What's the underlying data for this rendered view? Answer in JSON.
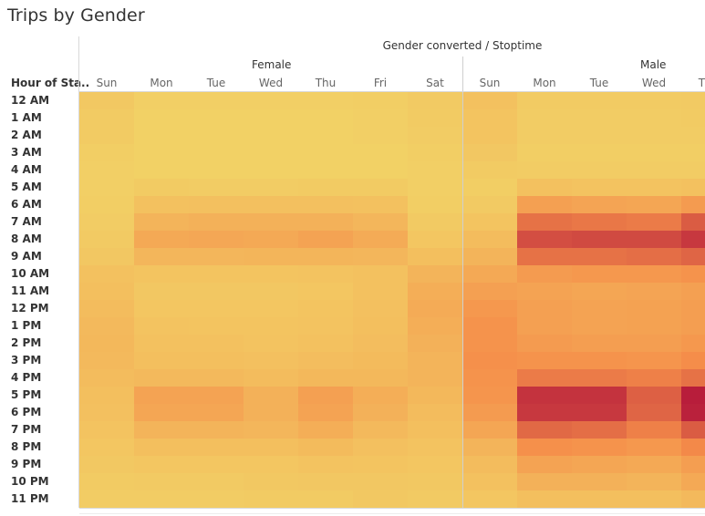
{
  "title": "Trips by Gender",
  "chart_data": {
    "type": "heatmap",
    "title": "Trips by Gender",
    "column_header": "Gender converted / Stoptime",
    "row_header": "Hour of Sta..",
    "genders": [
      "Female",
      "Male"
    ],
    "days": [
      "Sun",
      "Mon",
      "Tue",
      "Wed",
      "Thu",
      "Fri",
      "Sat"
    ],
    "hours": [
      "12 AM",
      "1 AM",
      "2 AM",
      "3 AM",
      "4 AM",
      "5 AM",
      "6 AM",
      "7 AM",
      "8 AM",
      "9 AM",
      "10 AM",
      "11 AM",
      "12 PM",
      "1 PM",
      "2 PM",
      "3 PM",
      "4 PM",
      "5 PM",
      "6 PM",
      "7 PM",
      "8 PM",
      "9 PM",
      "10 PM",
      "11 PM"
    ],
    "visible_columns": [
      {
        "gender": "Female",
        "day": "Sun"
      },
      {
        "gender": "Female",
        "day": "Mon"
      },
      {
        "gender": "Female",
        "day": "Tue"
      },
      {
        "gender": "Female",
        "day": "Wed"
      },
      {
        "gender": "Female",
        "day": "Thu"
      },
      {
        "gender": "Female",
        "day": "Fri"
      },
      {
        "gender": "Female",
        "day": "Sat"
      },
      {
        "gender": "Male",
        "day": "Sun"
      },
      {
        "gender": "Male",
        "day": "Mon"
      },
      {
        "gender": "Male",
        "day": "Tue"
      },
      {
        "gender": "Male",
        "day": "Wed"
      },
      {
        "gender": "Male",
        "day": "Thu"
      }
    ],
    "intensity_scale": "relative 0-1",
    "color_low": "#f2d266",
    "color_mid": "#f58d4a",
    "color_high": "#b81d3b",
    "values": [
      [
        0.07,
        0.02,
        0.02,
        0.02,
        0.02,
        0.03,
        0.06,
        0.12,
        0.05,
        0.05,
        0.05,
        0.06
      ],
      [
        0.05,
        0.01,
        0.01,
        0.01,
        0.01,
        0.02,
        0.05,
        0.1,
        0.04,
        0.04,
        0.04,
        0.05
      ],
      [
        0.05,
        0.01,
        0.01,
        0.01,
        0.01,
        0.02,
        0.04,
        0.1,
        0.04,
        0.04,
        0.04,
        0.04
      ],
      [
        0.03,
        0.01,
        0.01,
        0.01,
        0.01,
        0.01,
        0.03,
        0.08,
        0.03,
        0.03,
        0.03,
        0.03
      ],
      [
        0.02,
        0.01,
        0.01,
        0.01,
        0.01,
        0.01,
        0.02,
        0.05,
        0.04,
        0.04,
        0.04,
        0.04
      ],
      [
        0.02,
        0.05,
        0.04,
        0.04,
        0.05,
        0.05,
        0.02,
        0.03,
        0.12,
        0.11,
        0.11,
        0.12
      ],
      [
        0.03,
        0.12,
        0.13,
        0.13,
        0.13,
        0.12,
        0.03,
        0.06,
        0.36,
        0.33,
        0.32,
        0.4
      ],
      [
        0.04,
        0.22,
        0.24,
        0.24,
        0.24,
        0.2,
        0.06,
        0.1,
        0.62,
        0.6,
        0.58,
        0.72
      ],
      [
        0.06,
        0.3,
        0.31,
        0.3,
        0.34,
        0.28,
        0.09,
        0.16,
        0.78,
        0.8,
        0.8,
        0.88
      ],
      [
        0.08,
        0.2,
        0.2,
        0.21,
        0.21,
        0.2,
        0.14,
        0.22,
        0.62,
        0.62,
        0.64,
        0.68
      ],
      [
        0.12,
        0.1,
        0.1,
        0.1,
        0.11,
        0.12,
        0.22,
        0.3,
        0.4,
        0.42,
        0.42,
        0.46
      ],
      [
        0.14,
        0.08,
        0.08,
        0.08,
        0.09,
        0.12,
        0.26,
        0.36,
        0.34,
        0.32,
        0.33,
        0.36
      ],
      [
        0.16,
        0.09,
        0.09,
        0.09,
        0.1,
        0.13,
        0.28,
        0.42,
        0.36,
        0.34,
        0.35,
        0.38
      ],
      [
        0.18,
        0.11,
        0.1,
        0.1,
        0.11,
        0.14,
        0.26,
        0.46,
        0.36,
        0.34,
        0.35,
        0.38
      ],
      [
        0.19,
        0.12,
        0.12,
        0.11,
        0.12,
        0.15,
        0.24,
        0.46,
        0.4,
        0.38,
        0.38,
        0.42
      ],
      [
        0.18,
        0.14,
        0.14,
        0.13,
        0.15,
        0.17,
        0.22,
        0.48,
        0.46,
        0.46,
        0.44,
        0.5
      ],
      [
        0.16,
        0.18,
        0.18,
        0.16,
        0.19,
        0.19,
        0.22,
        0.46,
        0.58,
        0.58,
        0.56,
        0.62
      ],
      [
        0.14,
        0.34,
        0.34,
        0.24,
        0.36,
        0.26,
        0.19,
        0.44,
        0.9,
        0.9,
        0.7,
        1.0
      ],
      [
        0.13,
        0.32,
        0.32,
        0.24,
        0.34,
        0.24,
        0.16,
        0.4,
        0.88,
        0.88,
        0.68,
        0.98
      ],
      [
        0.11,
        0.22,
        0.22,
        0.2,
        0.26,
        0.18,
        0.14,
        0.32,
        0.66,
        0.64,
        0.56,
        0.72
      ],
      [
        0.09,
        0.14,
        0.14,
        0.14,
        0.17,
        0.13,
        0.11,
        0.22,
        0.48,
        0.46,
        0.42,
        0.52
      ],
      [
        0.07,
        0.09,
        0.09,
        0.09,
        0.11,
        0.1,
        0.09,
        0.16,
        0.34,
        0.32,
        0.3,
        0.38
      ],
      [
        0.05,
        0.06,
        0.06,
        0.07,
        0.08,
        0.08,
        0.07,
        0.12,
        0.24,
        0.24,
        0.22,
        0.3
      ],
      [
        0.04,
        0.04,
        0.04,
        0.05,
        0.05,
        0.07,
        0.06,
        0.09,
        0.14,
        0.14,
        0.14,
        0.18
      ]
    ]
  }
}
